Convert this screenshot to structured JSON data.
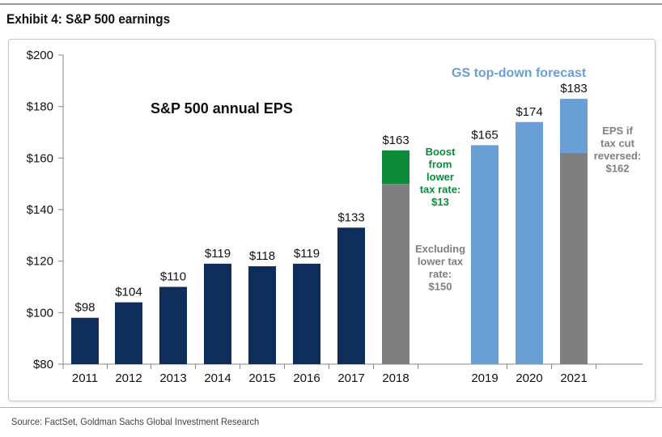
{
  "header": {
    "exhibit_title": "Exhibit 4: S&P 500 earnings"
  },
  "footer": {
    "source": "Source: FactSet, Goldman Sachs Global Investment Research"
  },
  "chart_data": {
    "type": "bar",
    "title": "S&P 500 annual EPS",
    "forecast_label": "GS top-down forecast",
    "ylim": [
      80,
      200
    ],
    "yticks": [
      80,
      100,
      120,
      140,
      160,
      180,
      200
    ],
    "ytick_labels": [
      "$80",
      "$100",
      "$120",
      "$140",
      "$160",
      "$180",
      "$200"
    ],
    "categories": [
      "2011",
      "2012",
      "2013",
      "2014",
      "2015",
      "2016",
      "2017",
      "2018",
      "2019",
      "2020",
      "2021"
    ],
    "values": [
      98,
      104,
      110,
      119,
      118,
      119,
      133,
      163,
      165,
      174,
      183
    ],
    "value_labels": [
      "$98",
      "$104",
      "$110",
      "$119",
      "$118",
      "$119",
      "$133",
      "$163",
      "$165",
      "$174",
      "$183"
    ],
    "segments": {
      "2018": {
        "base": 150,
        "boost": 13
      },
      "2021": {
        "base": 162,
        "forecast_top": 183
      }
    },
    "annotations": {
      "boost": [
        "Boost",
        "from",
        "lower",
        "tax rate:",
        "$13"
      ],
      "excluding": [
        "Excluding",
        "lower tax",
        "rate:",
        "$150"
      ],
      "eps_if": [
        "EPS if",
        "tax cut",
        "reversed:",
        "$162"
      ]
    },
    "grid": false,
    "colors": {
      "historical": "#0e2d5a",
      "excluding": "#7f7f7f",
      "boost": "#0c8a3a",
      "forecast": "#6a9fd6",
      "forecast_label": "#6a9fd6",
      "boost_text": "#0c8a3a",
      "gray_text": "#7f7f7f"
    }
  }
}
